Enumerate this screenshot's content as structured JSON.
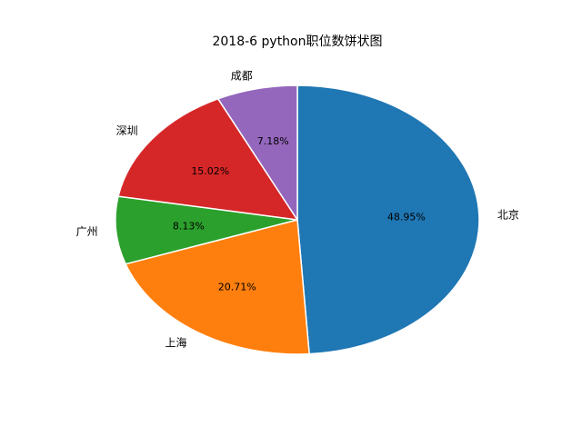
{
  "chart_data": {
    "type": "pie",
    "title": "2018-6 python职位数饼状图",
    "categories": [
      "北京",
      "上海",
      "广州",
      "深圳",
      "成都"
    ],
    "values": [
      48.95,
      20.71,
      8.13,
      15.02,
      7.18
    ],
    "value_labels": [
      "48.95%",
      "20.71%",
      "8.13%",
      "15.02%",
      "7.18%"
    ],
    "colors": [
      "#1f77b4",
      "#ff7f0e",
      "#2ca02c",
      "#d62728",
      "#9467bd"
    ],
    "start": "top",
    "direction": "clockwise",
    "legend": "none"
  }
}
